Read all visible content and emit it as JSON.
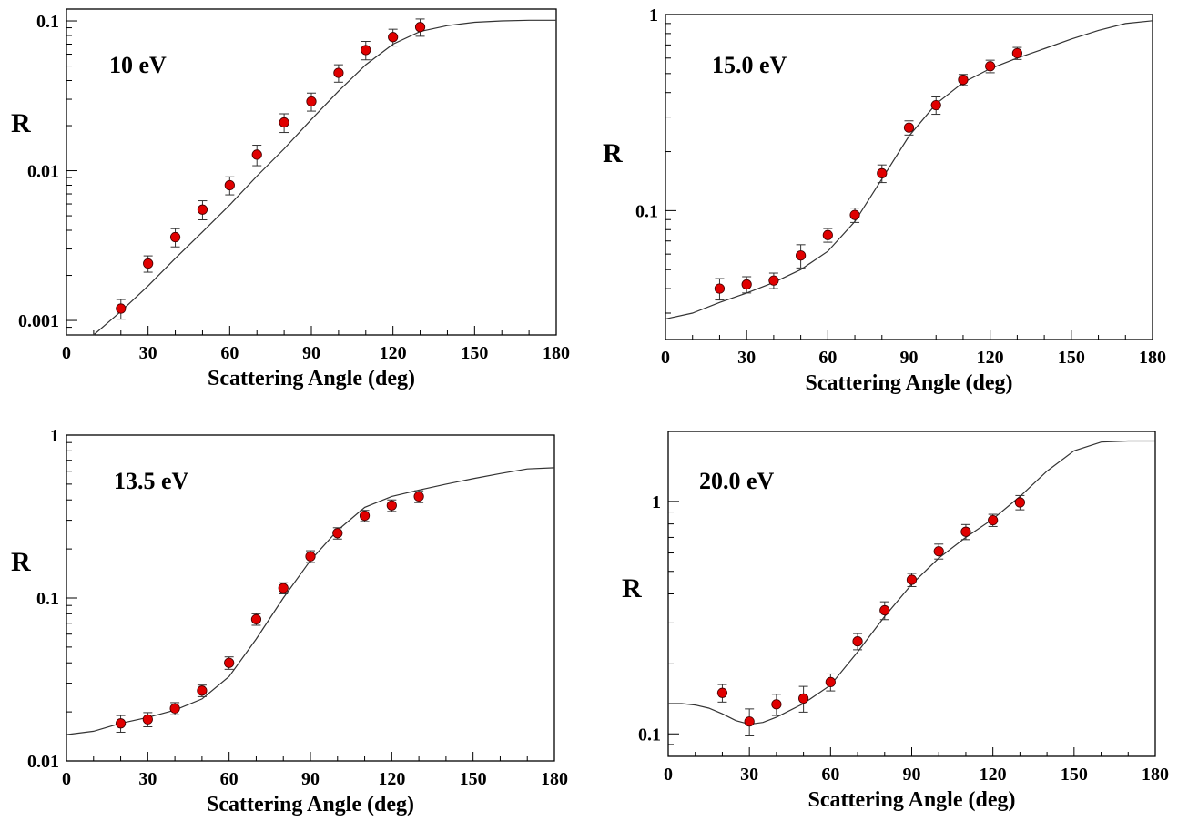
{
  "chart_data": [
    {
      "type": "scatter",
      "label": "10 eV",
      "xlabel": "Scattering Angle (deg)",
      "ylabel": "R",
      "xlim": [
        0,
        180
      ],
      "ylim": [
        0.0008,
        0.12
      ],
      "yscale": "log",
      "xticks": [
        "0",
        "30",
        "60",
        "90",
        "120",
        "150",
        "180"
      ],
      "yticks": [
        "0.001",
        "0.01",
        "0.1"
      ],
      "data": {
        "x": [
          20,
          30,
          40,
          50,
          60,
          70,
          80,
          90,
          100,
          110,
          120,
          130
        ],
        "y": [
          0.0012,
          0.0024,
          0.0036,
          0.0055,
          0.008,
          0.0128,
          0.021,
          0.029,
          0.045,
          0.064,
          0.078,
          0.091
        ],
        "err": [
          0.00018,
          0.0003,
          0.0005,
          0.0008,
          0.0011,
          0.002,
          0.003,
          0.004,
          0.006,
          0.009,
          0.01,
          0.012
        ]
      },
      "curve": {
        "x": [
          0,
          10,
          20,
          30,
          40,
          50,
          60,
          70,
          80,
          90,
          100,
          110,
          120,
          130,
          140,
          150,
          160,
          170,
          180
        ],
        "y": [
          0.00065,
          0.0008,
          0.00115,
          0.0017,
          0.0026,
          0.0039,
          0.0059,
          0.0092,
          0.014,
          0.022,
          0.034,
          0.051,
          0.07,
          0.085,
          0.093,
          0.098,
          0.1,
          0.101,
          0.101
        ]
      }
    },
    {
      "type": "scatter",
      "label": "15.0 eV",
      "xlabel": "Scattering Angle (deg)",
      "ylabel": "R",
      "xlim": [
        0,
        180
      ],
      "ylim": [
        0.022,
        1
      ],
      "yscale": "log",
      "xticks": [
        "0",
        "30",
        "60",
        "90",
        "120",
        "150",
        "180"
      ],
      "yticks": [
        "0.1",
        "1"
      ],
      "data": {
        "x": [
          20,
          30,
          40,
          50,
          60,
          70,
          80,
          90,
          100,
          110,
          120,
          130
        ],
        "y": [
          0.04,
          0.042,
          0.044,
          0.059,
          0.075,
          0.095,
          0.155,
          0.265,
          0.345,
          0.465,
          0.545,
          0.635
        ],
        "err": [
          0.005,
          0.004,
          0.004,
          0.008,
          0.006,
          0.008,
          0.016,
          0.022,
          0.035,
          0.03,
          0.04,
          0.045
        ]
      },
      "curve": {
        "x": [
          0,
          10,
          20,
          30,
          40,
          50,
          60,
          70,
          80,
          90,
          100,
          110,
          120,
          130,
          140,
          150,
          160,
          170,
          180
        ],
        "y": [
          0.028,
          0.03,
          0.034,
          0.038,
          0.043,
          0.05,
          0.062,
          0.088,
          0.145,
          0.24,
          0.35,
          0.45,
          0.53,
          0.6,
          0.67,
          0.75,
          0.83,
          0.9,
          0.93
        ]
      }
    },
    {
      "type": "scatter",
      "label": "13.5 eV",
      "xlabel": "Scattering Angle (deg)",
      "ylabel": "R",
      "xlim": [
        0,
        180
      ],
      "ylim": [
        0.01,
        1
      ],
      "yscale": "log",
      "xticks": [
        "0",
        "30",
        "60",
        "90",
        "120",
        "150",
        "180"
      ],
      "yticks": [
        "0.01",
        "0.1",
        "1"
      ],
      "data": {
        "x": [
          20,
          30,
          40,
          50,
          60,
          70,
          80,
          90,
          100,
          110,
          120,
          130
        ],
        "y": [
          0.017,
          0.018,
          0.021,
          0.027,
          0.04,
          0.074,
          0.115,
          0.18,
          0.25,
          0.32,
          0.37,
          0.42
        ],
        "err": [
          0.002,
          0.0018,
          0.0018,
          0.0022,
          0.0035,
          0.006,
          0.009,
          0.015,
          0.02,
          0.025,
          0.03,
          0.035
        ]
      },
      "curve": {
        "x": [
          0,
          10,
          20,
          30,
          40,
          50,
          60,
          70,
          80,
          90,
          100,
          110,
          120,
          130,
          140,
          150,
          160,
          170,
          180
        ],
        "y": [
          0.0145,
          0.0152,
          0.017,
          0.0185,
          0.0205,
          0.024,
          0.033,
          0.056,
          0.1,
          0.17,
          0.26,
          0.36,
          0.42,
          0.46,
          0.5,
          0.54,
          0.58,
          0.62,
          0.63
        ]
      }
    },
    {
      "type": "scatter",
      "label": "20.0 eV",
      "xlabel": "Scattering Angle (deg)",
      "ylabel": "R",
      "xlim": [
        0,
        180
      ],
      "ylim": [
        0.08,
        2.0
      ],
      "yscale": "log",
      "xticks": [
        "0",
        "30",
        "60",
        "90",
        "120",
        "150",
        "180"
      ],
      "yticks": [
        "0.1",
        "1"
      ],
      "data": {
        "x": [
          20,
          30,
          40,
          50,
          60,
          70,
          80,
          90,
          100,
          110,
          120,
          130
        ],
        "y": [
          0.15,
          0.113,
          0.134,
          0.142,
          0.167,
          0.25,
          0.34,
          0.46,
          0.61,
          0.74,
          0.83,
          0.99
        ],
        "err": [
          0.013,
          0.015,
          0.014,
          0.018,
          0.014,
          0.02,
          0.03,
          0.03,
          0.045,
          0.055,
          0.05,
          0.07
        ]
      },
      "curve": {
        "x": [
          0,
          5,
          10,
          15,
          20,
          25,
          30,
          35,
          40,
          50,
          60,
          70,
          80,
          90,
          100,
          110,
          120,
          130,
          140,
          150,
          160,
          170,
          180
        ],
        "y": [
          0.135,
          0.135,
          0.133,
          0.129,
          0.122,
          0.114,
          0.11,
          0.112,
          0.118,
          0.135,
          0.162,
          0.225,
          0.32,
          0.44,
          0.57,
          0.7,
          0.84,
          1.05,
          1.35,
          1.65,
          1.8,
          1.82,
          1.82
        ]
      }
    }
  ]
}
